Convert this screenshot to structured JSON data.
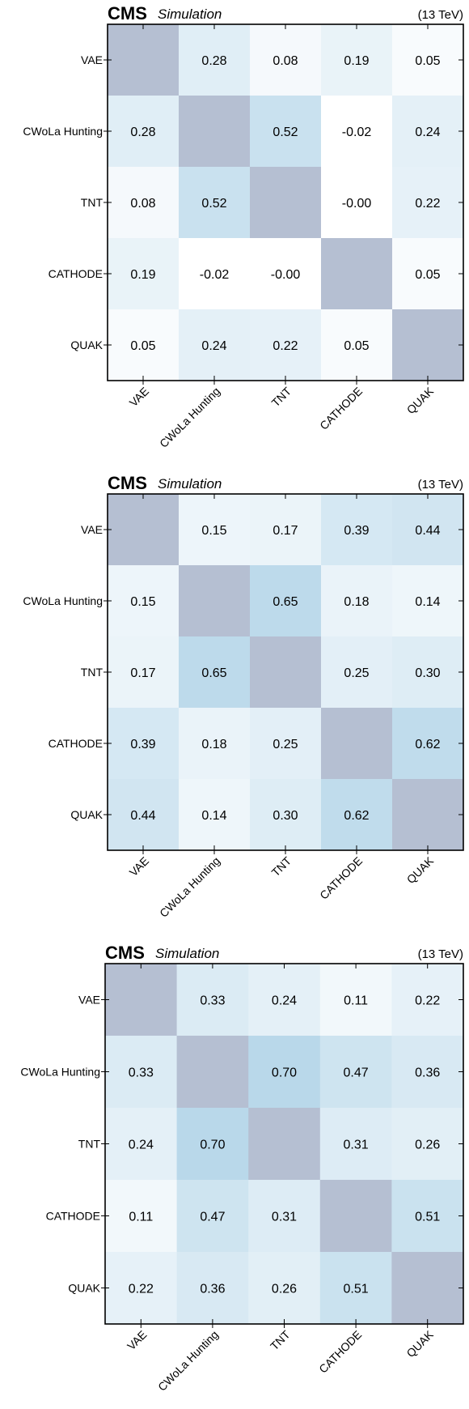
{
  "chart_data": [
    {
      "type": "heatmap",
      "experiment": "CMS",
      "status": "Simulation",
      "energy": "(13 TeV)",
      "labels": [
        "VAE",
        "CWoLa Hunting",
        "TNT",
        "CATHODE",
        "QUAK"
      ],
      "values": [
        [
          null,
          0.28,
          0.08,
          0.19,
          0.05
        ],
        [
          0.28,
          null,
          0.52,
          -0.02,
          0.24
        ],
        [
          0.08,
          0.52,
          null,
          -0.0,
          0.22
        ],
        [
          0.19,
          -0.02,
          -0.0,
          null,
          0.05
        ],
        [
          0.05,
          0.24,
          0.22,
          0.05,
          null
        ]
      ],
      "value_labels": [
        [
          "",
          "0.28",
          "0.08",
          "0.19",
          "0.05"
        ],
        [
          "0.28",
          "",
          "0.52",
          "-0.02",
          "0.24"
        ],
        [
          "0.08",
          "0.52",
          "",
          "-0.00",
          "0.22"
        ],
        [
          "0.19",
          "-0.02",
          "-0.00",
          "",
          "0.05"
        ],
        [
          "0.05",
          "0.24",
          "0.22",
          "0.05",
          ""
        ]
      ],
      "diagonal_color": "#b5bfd2",
      "colormap": [
        "#ffffff",
        "#9ec9e2"
      ],
      "color_range": [
        0,
        1
      ]
    },
    {
      "type": "heatmap",
      "experiment": "CMS",
      "status": "Simulation",
      "energy": "(13 TeV)",
      "labels": [
        "VAE",
        "CWoLa Hunting",
        "TNT",
        "CATHODE",
        "QUAK"
      ],
      "values": [
        [
          null,
          0.15,
          0.17,
          0.39,
          0.44
        ],
        [
          0.15,
          null,
          0.65,
          0.18,
          0.14
        ],
        [
          0.17,
          0.65,
          null,
          0.25,
          0.3
        ],
        [
          0.39,
          0.18,
          0.25,
          null,
          0.62
        ],
        [
          0.44,
          0.14,
          0.3,
          0.62,
          null
        ]
      ],
      "value_labels": [
        [
          "",
          "0.15",
          "0.17",
          "0.39",
          "0.44"
        ],
        [
          "0.15",
          "",
          "0.65",
          "0.18",
          "0.14"
        ],
        [
          "0.17",
          "0.65",
          "",
          "0.25",
          "0.30"
        ],
        [
          "0.39",
          "0.18",
          "0.25",
          "",
          "0.62"
        ],
        [
          "0.44",
          "0.14",
          "0.30",
          "0.62",
          ""
        ]
      ],
      "diagonal_color": "#b5bfd2",
      "colormap": [
        "#ffffff",
        "#9ec9e2"
      ],
      "color_range": [
        0,
        1
      ]
    },
    {
      "type": "heatmap",
      "experiment": "CMS",
      "status": "Simulation",
      "energy": "(13 TeV)",
      "labels": [
        "VAE",
        "CWoLa Hunting",
        "TNT",
        "CATHODE",
        "QUAK"
      ],
      "values": [
        [
          null,
          0.33,
          0.24,
          0.11,
          0.22
        ],
        [
          0.33,
          null,
          0.7,
          0.47,
          0.36
        ],
        [
          0.24,
          0.7,
          null,
          0.31,
          0.26
        ],
        [
          0.11,
          0.47,
          0.31,
          null,
          0.51
        ],
        [
          0.22,
          0.36,
          0.26,
          0.51,
          null
        ]
      ],
      "value_labels": [
        [
          "",
          "0.33",
          "0.24",
          "0.11",
          "0.22"
        ],
        [
          "0.33",
          "",
          "0.70",
          "0.47",
          "0.36"
        ],
        [
          "0.24",
          "0.70",
          "",
          "0.31",
          "0.26"
        ],
        [
          "0.11",
          "0.47",
          "0.31",
          "",
          "0.51"
        ],
        [
          "0.22",
          "0.36",
          "0.26",
          "0.51",
          ""
        ]
      ],
      "diagonal_color": "#b5bfd2",
      "colormap": [
        "#ffffff",
        "#9ec9e2"
      ],
      "color_range": [
        0,
        1
      ]
    }
  ]
}
